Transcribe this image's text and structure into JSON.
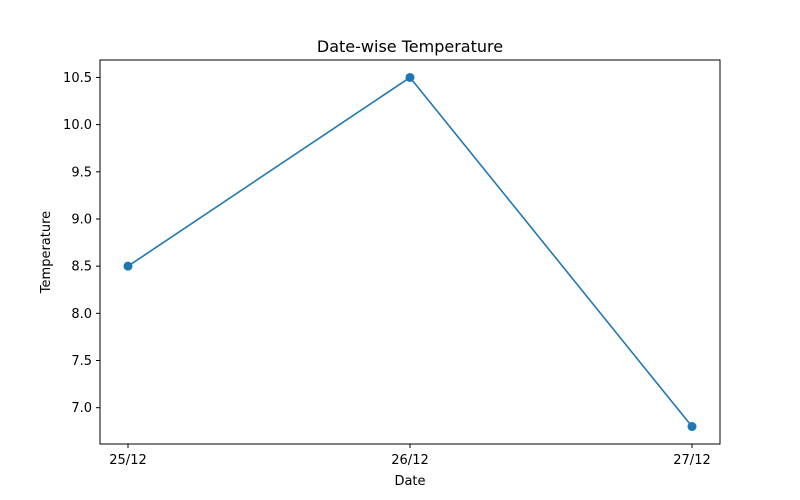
{
  "chart_data": {
    "type": "line",
    "title": "Date-wise Temperature",
    "xlabel": "Date",
    "ylabel": "Temperature",
    "categories": [
      "25/12",
      "26/12",
      "27/12"
    ],
    "series": [
      {
        "values": [
          8.5,
          10.5,
          6.8
        ],
        "color": "#1f77b4",
        "marker": "circle"
      }
    ],
    "yticks": [
      7.0,
      7.5,
      8.0,
      8.5,
      9.0,
      9.5,
      10.0,
      10.5
    ],
    "ytick_labels": [
      "7.0",
      "7.5",
      "8.0",
      "8.5",
      "9.0",
      "9.5",
      "10.0",
      "10.5"
    ],
    "ylim": [
      6.615,
      10.685
    ],
    "grid": false,
    "legend": "none"
  }
}
